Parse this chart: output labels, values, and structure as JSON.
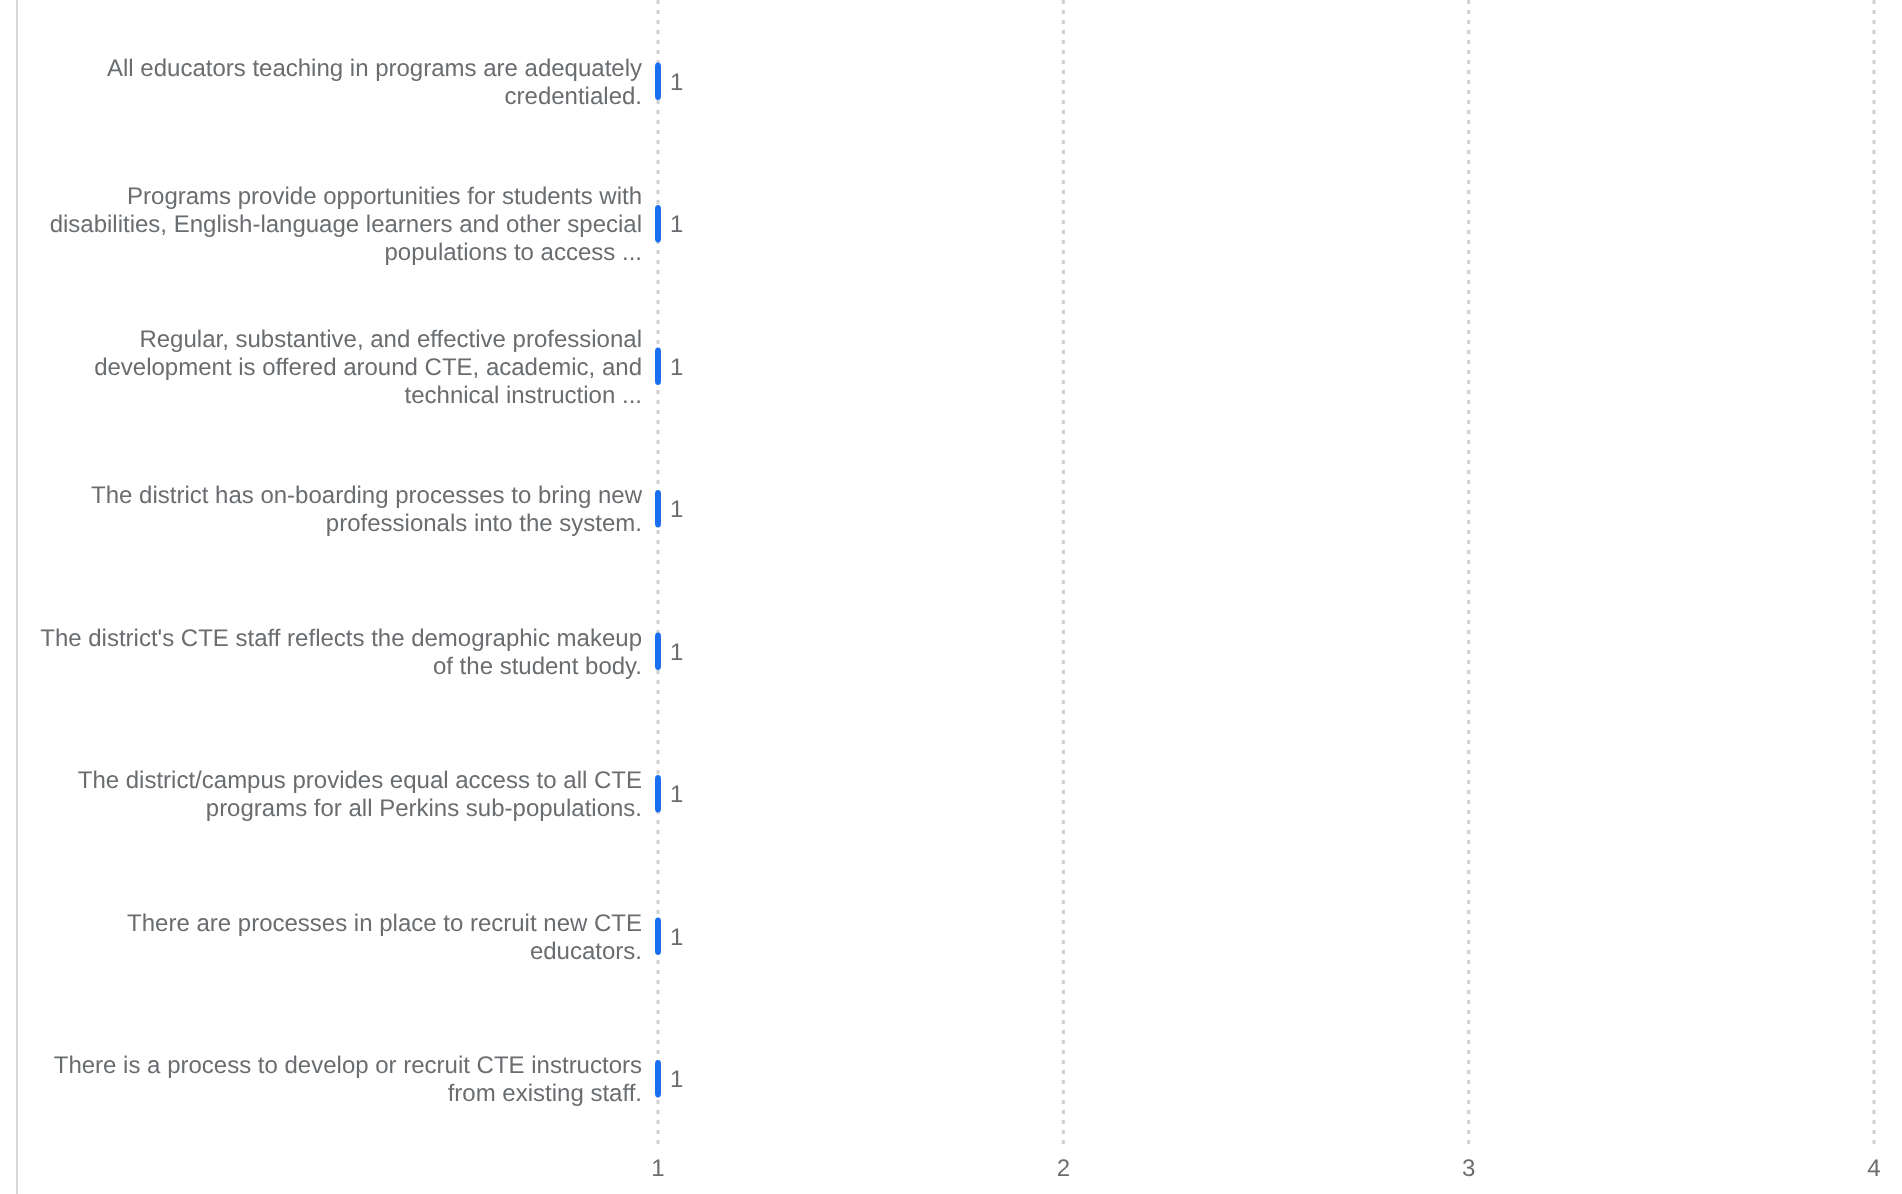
{
  "chart_data": {
    "type": "bar",
    "orientation": "horizontal",
    "categories": [
      "All educators teaching in programs are adequately credentialed.",
      "Programs provide opportunities for students with disabilities, English-language learners and other special populations to access ...",
      "Regular, substantive, and effective professional development is offered around CTE, academic, and technical instruction ...",
      "The district has on-boarding processes to bring new professionals into the system.",
      "The district's CTE staff reflects the demographic makeup of the student body.",
      "The district/campus provides equal access to all CTE programs for all Perkins sub-populations.",
      "There are processes in place to recruit new CTE educators.",
      "There is a process to develop or recruit CTE instructors from existing staff."
    ],
    "values": [
      1,
      1,
      1,
      1,
      1,
      1,
      1,
      1
    ],
    "color": "#1a6ff0",
    "xlim": [
      1,
      4
    ],
    "xticks": [
      1,
      2,
      3,
      4
    ],
    "grid": "x",
    "data_labels": true
  }
}
